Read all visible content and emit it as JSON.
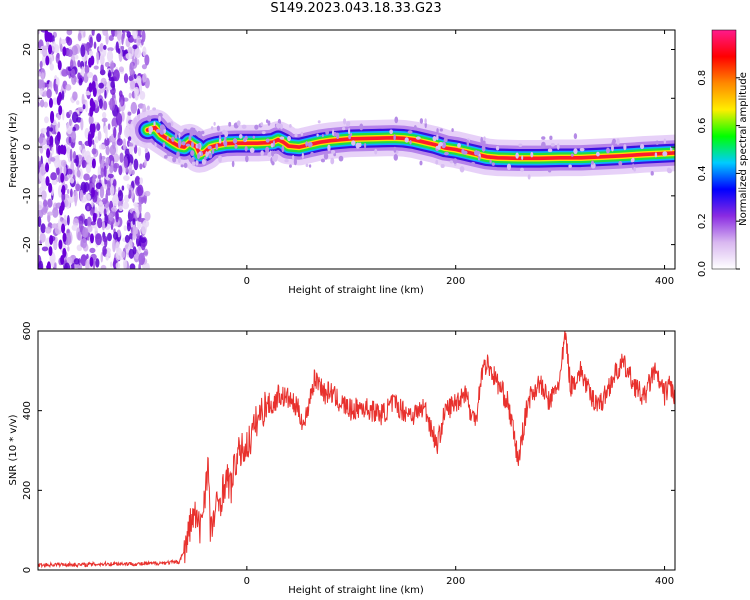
{
  "title": "S149.2023.043.18.33.G23",
  "chart_data": [
    {
      "type": "heatmap",
      "xlabel": "Height of straight line (km)",
      "ylabel": "Frequency (Hz)",
      "xlim": [
        -200,
        410
      ],
      "ylim": [
        -25,
        24
      ],
      "x_ticks": [
        0,
        200,
        400
      ],
      "y_ticks": [
        20,
        10,
        0,
        -10,
        -20
      ],
      "noise_region_x": [
        -200,
        -95
      ],
      "signal_ridge": {
        "x": [
          -95,
          -88,
          -82,
          -75,
          -70,
          -65,
          -60,
          -55,
          -52,
          -48,
          -45,
          -40,
          -35,
          -30,
          -25,
          -20,
          -10,
          0,
          10,
          20,
          25,
          30,
          35,
          40,
          50,
          60,
          70,
          80,
          90,
          100,
          120,
          140,
          150,
          160,
          170,
          180,
          190,
          200,
          210,
          220,
          230,
          240,
          260,
          280,
          300,
          320,
          340,
          360,
          380,
          400,
          410
        ],
        "y": [
          3.5,
          4.0,
          2.5,
          1.5,
          0.8,
          0.2,
          0,
          1.0,
          0.5,
          0,
          -1.5,
          -1.0,
          0,
          0.3,
          0.5,
          0.7,
          0.8,
          0.8,
          0.8,
          0.9,
          1.0,
          1.5,
          1.0,
          0.2,
          0,
          0.5,
          1.0,
          1.3,
          1.5,
          1.7,
          1.8,
          1.9,
          1.8,
          1.5,
          1.0,
          0.5,
          -0.2,
          -0.5,
          -1.0,
          -1.5,
          -2.0,
          -2.2,
          -2.3,
          -2.3,
          -2.2,
          -2.2,
          -2.0,
          -1.8,
          -1.5,
          -1.3,
          -1.2
        ]
      },
      "colorbar": {
        "label": "Normalized spectral amplitude",
        "range": [
          0,
          1
        ],
        "ticks": [
          0.0,
          0.2,
          0.4,
          0.6,
          0.8
        ],
        "colors": [
          "#ffffff",
          "#d9b8f0",
          "#8a2be2",
          "#0000ff",
          "#00ccff",
          "#00ff00",
          "#ffee00",
          "#ff8800",
          "#ff0000",
          "#ff1a8c"
        ]
      }
    },
    {
      "type": "line",
      "xlabel": "Height of straight line (km)",
      "ylabel": "SNR (10 * v/v)",
      "xlim": [
        -200,
        410
      ],
      "ylim": [
        0,
        600
      ],
      "x_ticks": [
        0,
        200,
        400
      ],
      "y_ticks": [
        0,
        200,
        400,
        600
      ],
      "line_color": "#e8312d",
      "series": [
        {
          "x": [
            -200,
            -180,
            -160,
            -140,
            -120,
            -100,
            -80,
            -65,
            -58,
            -55,
            -50,
            -45,
            -40,
            -37,
            -35,
            -30,
            -25,
            -20,
            -15,
            -10,
            -5,
            0,
            5,
            10,
            15,
            20,
            25,
            30,
            40,
            50,
            55,
            60,
            65,
            70,
            75,
            80,
            85,
            90,
            100,
            110,
            120,
            130,
            140,
            150,
            160,
            170,
            180,
            182,
            190,
            200,
            210,
            215,
            220,
            225,
            230,
            240,
            250,
            255,
            260,
            265,
            270,
            280,
            290,
            300,
            305,
            310,
            320,
            330,
            340,
            350,
            360,
            370,
            380,
            390,
            400,
            405,
            410
          ],
          "values": [
            12,
            14,
            13,
            15,
            16,
            15,
            18,
            20,
            60,
            110,
            140,
            100,
            200,
            270,
            90,
            150,
            180,
            230,
            210,
            280,
            300,
            310,
            340,
            380,
            400,
            420,
            410,
            440,
            430,
            400,
            360,
            430,
            480,
            470,
            440,
            450,
            430,
            420,
            400,
            410,
            400,
            390,
            420,
            400,
            390,
            410,
            330,
            310,
            400,
            420,
            450,
            380,
            390,
            500,
            520,
            470,
            420,
            350,
            270,
            360,
            430,
            470,
            420,
            480,
            595,
            460,
            500,
            430,
            420,
            480,
            520,
            470,
            430,
            500,
            440,
            470,
            430
          ]
        }
      ]
    }
  ]
}
